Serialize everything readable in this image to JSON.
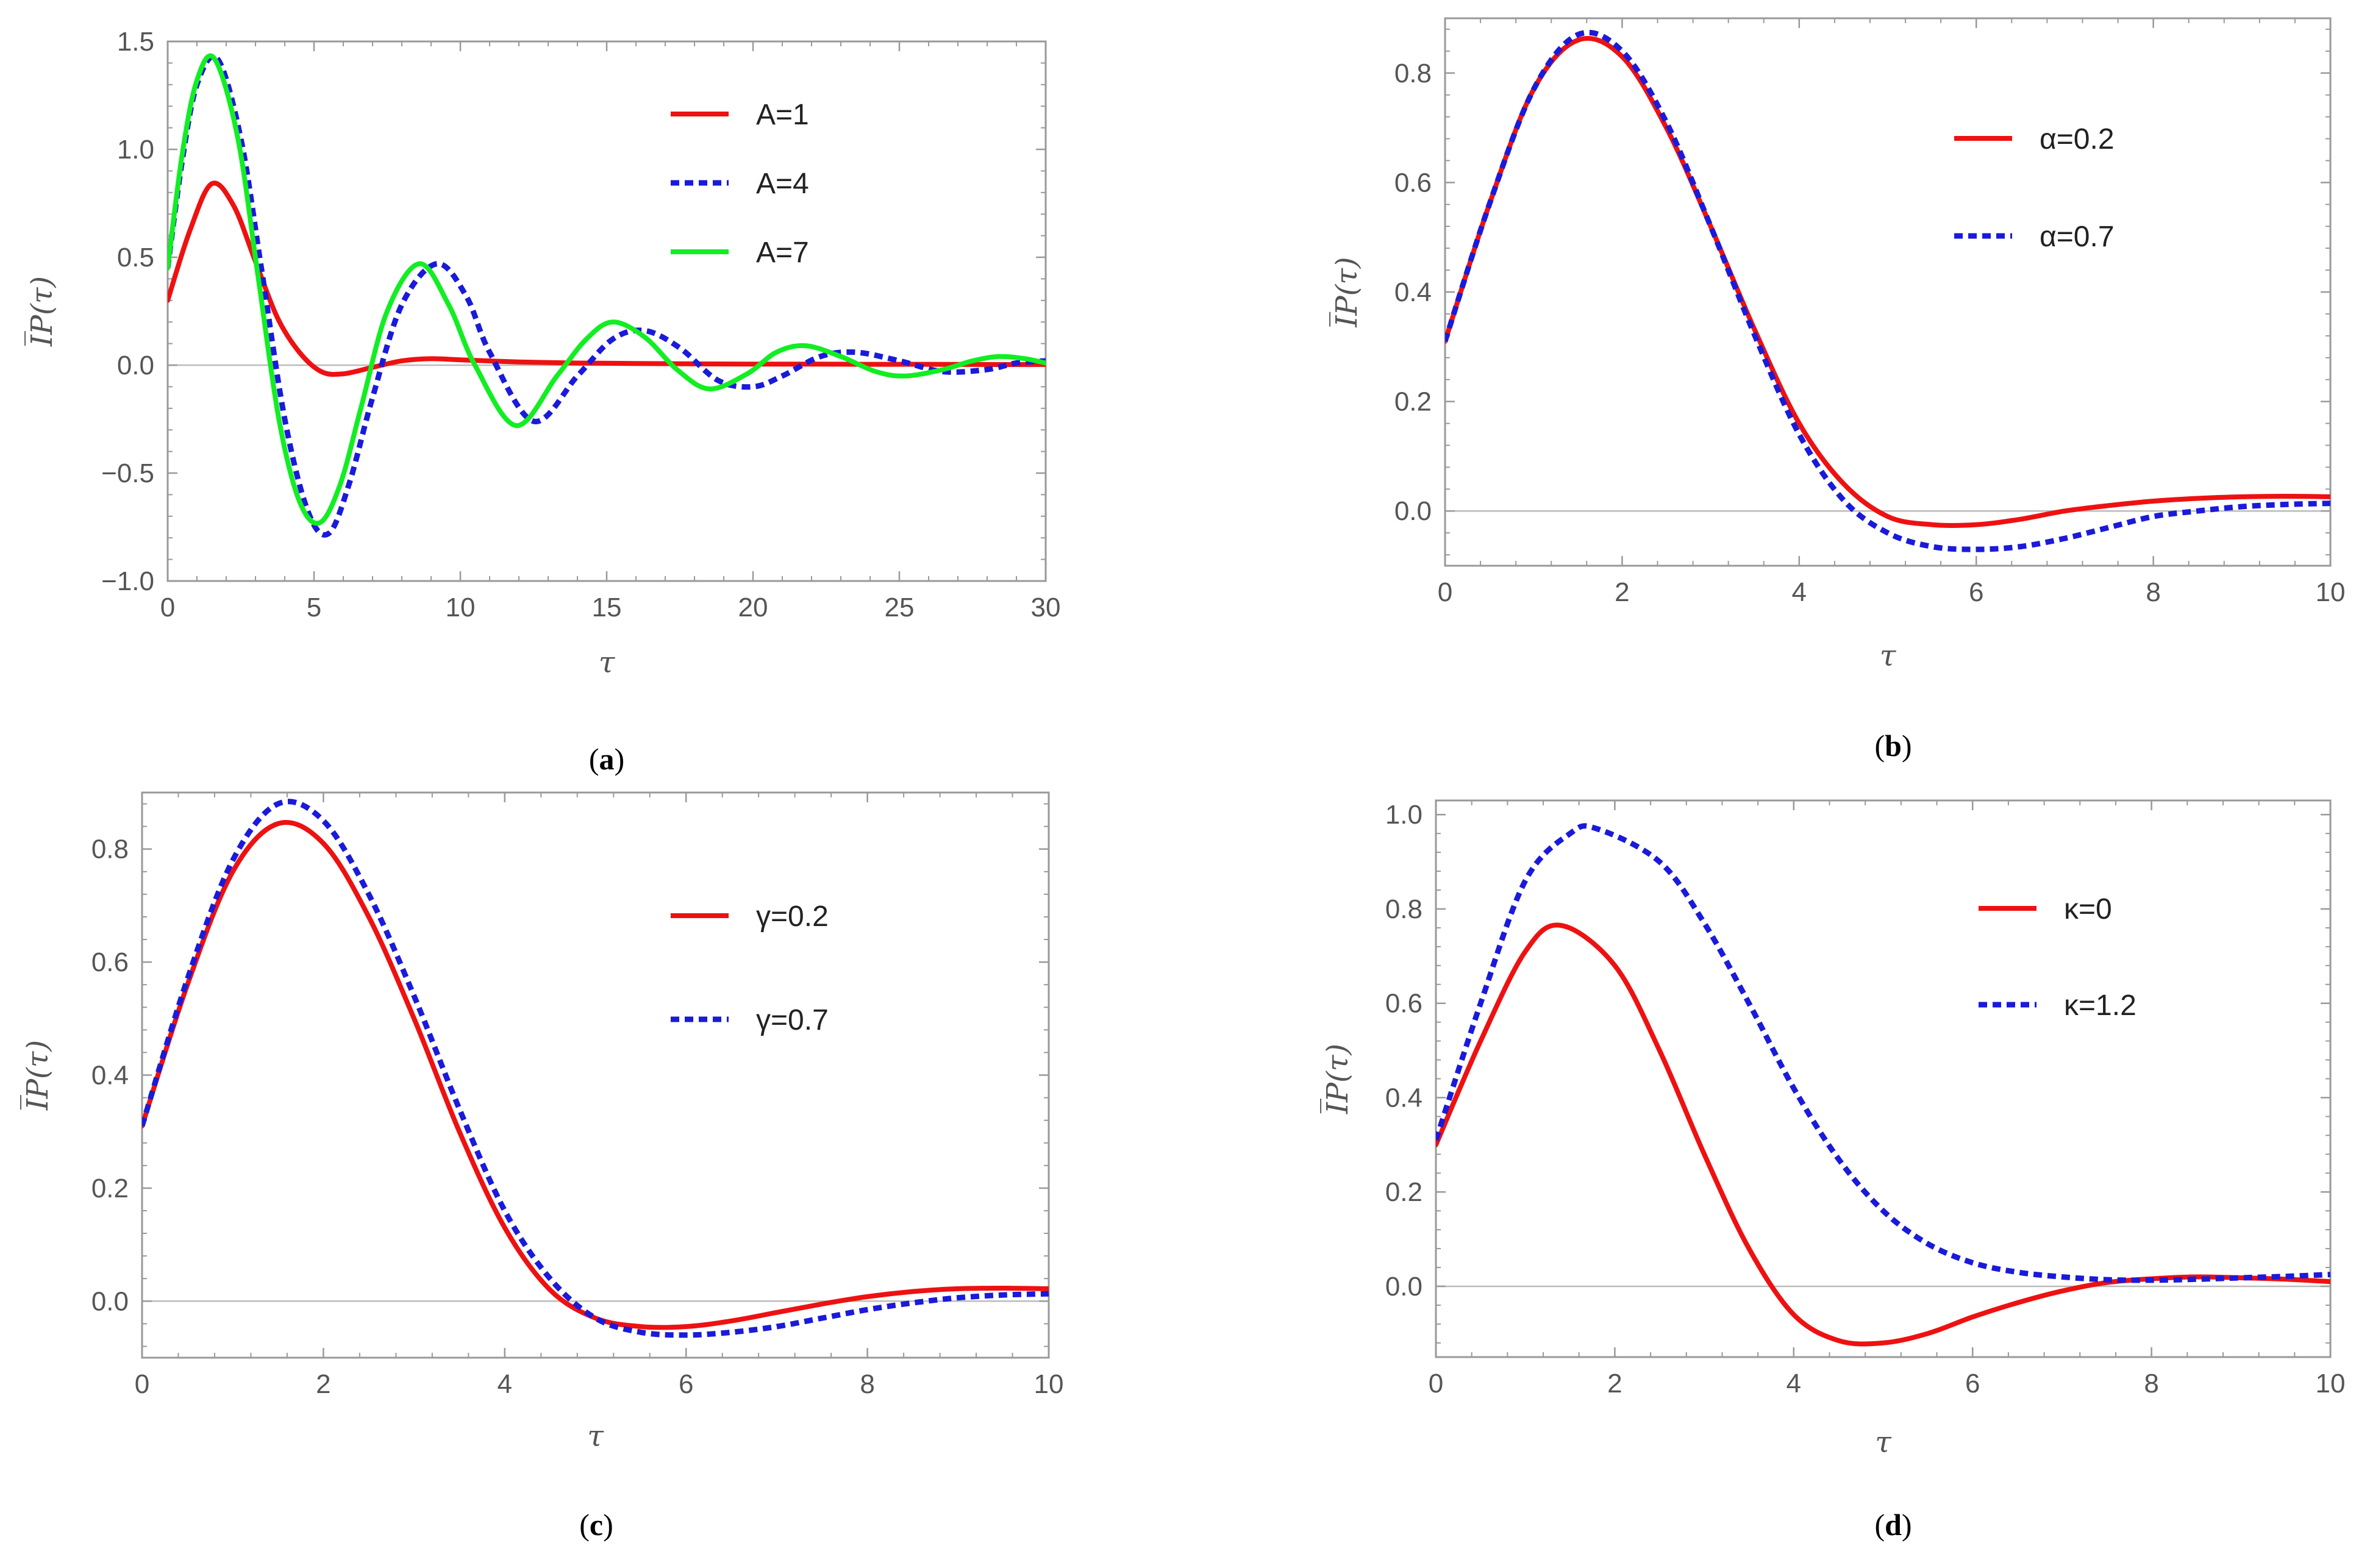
{
  "figure": {
    "colors": {
      "red": "#ee1111",
      "blue": "#1a1adb",
      "green": "#11ee22",
      "frame": "#999999",
      "zero": "#bbbbbb",
      "text": "#555555"
    }
  },
  "chart_data": [
    {
      "id": "a",
      "type": "line",
      "caption_letter": "a",
      "xlabel": "τ",
      "ylabel": "I̅P(τ)",
      "xlim": [
        0,
        30
      ],
      "ylim": [
        -1.0,
        1.5
      ],
      "xticks": [
        0,
        5,
        10,
        15,
        20,
        25,
        30
      ],
      "yticks": [
        -1.0,
        -0.5,
        0.0,
        0.5,
        1.0,
        1.5
      ],
      "ytick_labels": [
        "−1.0",
        "−0.5",
        "0.0",
        "0.5",
        "1.0",
        "1.5"
      ],
      "legend": "top-right",
      "series": [
        {
          "name": "A=1",
          "color": "#ee1111",
          "style": "solid",
          "x": [
            0,
            0.75,
            1.5,
            2.25,
            3,
            3.75,
            4.5,
            5.25,
            6,
            7,
            8,
            9,
            10,
            12,
            14,
            16,
            18,
            20,
            22,
            24,
            26,
            28,
            30
          ],
          "y": [
            0.3,
            0.62,
            0.84,
            0.74,
            0.48,
            0.22,
            0.06,
            -0.03,
            -0.04,
            -0.01,
            0.02,
            0.03,
            0.025,
            0.015,
            0.01,
            0.008,
            0.006,
            0.005,
            0.005,
            0.004,
            0.004,
            0.003,
            0.003
          ]
        },
        {
          "name": "A=4",
          "color": "#1a1adb",
          "style": "dashed",
          "x": [
            0,
            0.5,
            1,
            1.7,
            2.5,
            3.2,
            4,
            4.8,
            5.5,
            6.2,
            7,
            8,
            9.2,
            10.2,
            11,
            12.5,
            14,
            15.2,
            16.3,
            17.5,
            18.8,
            20,
            21,
            22.3,
            23.5,
            25,
            26.5,
            28,
            29,
            30
          ],
          "y": [
            0.45,
            0.95,
            1.3,
            1.42,
            1.05,
            0.45,
            -0.25,
            -0.68,
            -0.78,
            -0.55,
            -0.15,
            0.28,
            0.47,
            0.32,
            0.06,
            -0.26,
            -0.05,
            0.12,
            0.16,
            0.08,
            -0.07,
            -0.1,
            -0.05,
            0.04,
            0.06,
            0.02,
            -0.03,
            -0.02,
            0.01,
            0.02
          ]
        },
        {
          "name": "A=7",
          "color": "#11ee22",
          "style": "solid",
          "x": [
            0,
            0.5,
            1,
            1.6,
            2.4,
            3.1,
            3.8,
            4.5,
            5.2,
            5.9,
            6.6,
            7.5,
            8.6,
            9.6,
            10.5,
            11.9,
            13.3,
            14.3,
            15.2,
            16.3,
            17.4,
            18.5,
            19.8,
            20.8,
            21.8,
            23,
            24.2,
            25.2,
            26.5,
            27.5,
            28.4,
            29.3,
            30
          ],
          "y": [
            0.45,
            0.98,
            1.32,
            1.42,
            1.05,
            0.4,
            -0.25,
            -0.63,
            -0.73,
            -0.55,
            -0.2,
            0.25,
            0.47,
            0.28,
            0.0,
            -0.28,
            -0.05,
            0.12,
            0.2,
            0.13,
            -0.02,
            -0.11,
            -0.04,
            0.06,
            0.09,
            0.04,
            -0.03,
            -0.05,
            -0.02,
            0.02,
            0.04,
            0.03,
            0.01
          ]
        }
      ]
    },
    {
      "id": "b",
      "type": "line",
      "caption_letter": "b",
      "xlabel": "τ",
      "ylabel": "I̅P(τ)",
      "xlim": [
        0,
        10
      ],
      "ylim": [
        -0.1,
        0.9
      ],
      "xticks": [
        0,
        2,
        4,
        6,
        8,
        10
      ],
      "yticks": [
        0.0,
        0.2,
        0.4,
        0.6,
        0.8
      ],
      "ytick_labels": [
        "0.0",
        "0.2",
        "0.4",
        "0.6",
        "0.8"
      ],
      "legend": "top-right",
      "series": [
        {
          "name": "α=0.2",
          "color": "#ee1111",
          "style": "solid",
          "x": [
            0,
            0.5,
            1,
            1.5,
            2,
            2.5,
            3,
            3.5,
            4,
            4.5,
            5,
            5.5,
            6,
            6.5,
            7,
            7.5,
            8,
            8.5,
            9,
            9.5,
            10
          ],
          "y": [
            0.31,
            0.56,
            0.77,
            0.86,
            0.83,
            0.7,
            0.52,
            0.33,
            0.16,
            0.05,
            -0.01,
            -0.025,
            -0.025,
            -0.015,
            0.0,
            0.01,
            0.018,
            0.023,
            0.026,
            0.027,
            0.026
          ]
        },
        {
          "name": "α=0.7",
          "color": "#1a1adb",
          "style": "dashed",
          "x": [
            0,
            0.5,
            1,
            1.5,
            2,
            2.5,
            3,
            3.5,
            4,
            4.5,
            5,
            5.5,
            6,
            6.5,
            7,
            7.5,
            8,
            8.5,
            9,
            9.5,
            10
          ],
          "y": [
            0.31,
            0.56,
            0.77,
            0.87,
            0.84,
            0.71,
            0.52,
            0.32,
            0.14,
            0.02,
            -0.04,
            -0.065,
            -0.07,
            -0.065,
            -0.05,
            -0.03,
            -0.01,
            0.0,
            0.008,
            0.012,
            0.014
          ]
        }
      ]
    },
    {
      "id": "c",
      "type": "line",
      "caption_letter": "c",
      "xlabel": "τ",
      "ylabel": "I̅P(τ)",
      "xlim": [
        0,
        10
      ],
      "ylim": [
        -0.1,
        0.9
      ],
      "xticks": [
        0,
        2,
        4,
        6,
        8,
        10
      ],
      "yticks": [
        0.0,
        0.2,
        0.4,
        0.6,
        0.8
      ],
      "ytick_labels": [
        "0.0",
        "0.2",
        "0.4",
        "0.6",
        "0.8"
      ],
      "legend": "top-right",
      "series": [
        {
          "name": "γ=0.2",
          "color": "#ee1111",
          "style": "solid",
          "x": [
            0,
            0.5,
            1,
            1.5,
            2,
            2.5,
            3,
            3.5,
            4,
            4.5,
            5,
            5.5,
            6,
            6.5,
            7,
            7.5,
            8,
            8.5,
            9,
            9.5,
            10
          ],
          "y": [
            0.31,
            0.56,
            0.76,
            0.845,
            0.81,
            0.68,
            0.5,
            0.3,
            0.13,
            0.02,
            -0.03,
            -0.045,
            -0.045,
            -0.035,
            -0.02,
            -0.005,
            0.008,
            0.017,
            0.022,
            0.023,
            0.022
          ]
        },
        {
          "name": "γ=0.7",
          "color": "#1a1adb",
          "style": "dashed",
          "x": [
            0,
            0.5,
            1,
            1.5,
            2,
            2.5,
            3,
            3.5,
            4,
            4.5,
            5,
            5.5,
            6,
            6.5,
            7,
            7.5,
            8,
            8.5,
            9,
            9.5,
            10
          ],
          "y": [
            0.31,
            0.57,
            0.78,
            0.88,
            0.85,
            0.72,
            0.54,
            0.34,
            0.16,
            0.04,
            -0.03,
            -0.055,
            -0.06,
            -0.055,
            -0.045,
            -0.03,
            -0.015,
            -0.003,
            0.006,
            0.011,
            0.013
          ]
        }
      ]
    },
    {
      "id": "d",
      "type": "line",
      "caption_letter": "d",
      "xlabel": "τ",
      "ylabel": "I̅P(τ)",
      "xlim": [
        0,
        10
      ],
      "ylim": [
        -0.15,
        1.03
      ],
      "xticks": [
        0,
        2,
        4,
        6,
        8,
        10
      ],
      "yticks": [
        0.0,
        0.2,
        0.4,
        0.6,
        0.8,
        1.0
      ],
      "ytick_labels": [
        "0.0",
        "0.2",
        "0.4",
        "0.6",
        "0.8",
        "1.0"
      ],
      "legend": "top-right",
      "series": [
        {
          "name": "κ=0",
          "color": "#ee1111",
          "style": "solid",
          "x": [
            0,
            0.5,
            1,
            1.4,
            2,
            2.5,
            3,
            3.5,
            4,
            4.5,
            5,
            5.5,
            6,
            6.5,
            7,
            7.5,
            8,
            8.5,
            9,
            9.5,
            10
          ],
          "y": [
            0.3,
            0.52,
            0.71,
            0.765,
            0.68,
            0.5,
            0.28,
            0.08,
            -0.06,
            -0.115,
            -0.12,
            -0.1,
            -0.065,
            -0.035,
            -0.01,
            0.008,
            0.016,
            0.02,
            0.018,
            0.015,
            0.01
          ]
        },
        {
          "name": "κ=1.2",
          "color": "#1a1adb",
          "style": "dashed",
          "x": [
            0,
            0.5,
            1,
            1.5,
            1.8,
            2.5,
            3,
            3.5,
            4,
            4.5,
            5,
            5.5,
            6,
            6.5,
            7,
            7.5,
            8,
            8.5,
            9,
            9.5,
            10
          ],
          "y": [
            0.31,
            0.6,
            0.86,
            0.96,
            0.97,
            0.9,
            0.77,
            0.6,
            0.42,
            0.27,
            0.16,
            0.09,
            0.05,
            0.03,
            0.02,
            0.014,
            0.013,
            0.015,
            0.018,
            0.021,
            0.025
          ]
        }
      ]
    }
  ]
}
